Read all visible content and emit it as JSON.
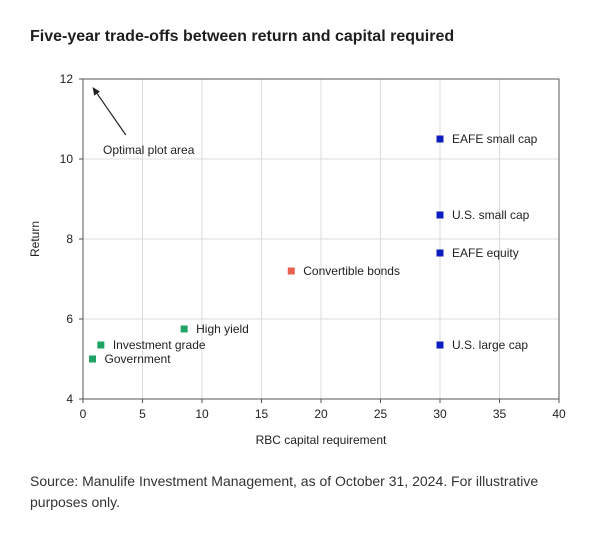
{
  "title": "Five-year trade-offs between return and capital required",
  "source": "Source: Manulife Investment Management, as of October 31, 2024. For illustrative purposes only.",
  "chart_data": {
    "type": "scatter",
    "xlabel": "RBC capital requirement",
    "ylabel": "Return",
    "xlim": [
      0,
      40
    ],
    "ylim": [
      4,
      12
    ],
    "xticks": [
      0,
      5,
      10,
      15,
      20,
      25,
      30,
      35,
      40
    ],
    "yticks": [
      4,
      6,
      8,
      10,
      12
    ],
    "grid": true,
    "annotation": {
      "text": "Optimal plot area",
      "arrow_from": [
        3.6,
        10.6
      ],
      "arrow_to": [
        0.8,
        11.8
      ]
    },
    "points": [
      {
        "label": "Government",
        "x": 0.8,
        "y": 5.0,
        "color": "#1fa463"
      },
      {
        "label": "Investment grade",
        "x": 1.5,
        "y": 5.35,
        "color": "#1fa463"
      },
      {
        "label": "High yield",
        "x": 8.5,
        "y": 5.75,
        "color": "#1fa463"
      },
      {
        "label": "Convertible bonds",
        "x": 17.5,
        "y": 7.2,
        "color": "#e8614f"
      },
      {
        "label": "U.S. large cap",
        "x": 30,
        "y": 5.35,
        "color": "#0b1dbf"
      },
      {
        "label": "EAFE equity",
        "x": 30,
        "y": 7.65,
        "color": "#0b1dbf"
      },
      {
        "label": "U.S. small cap",
        "x": 30,
        "y": 8.6,
        "color": "#0b1dbf"
      },
      {
        "label": "EAFE small cap",
        "x": 30,
        "y": 10.5,
        "color": "#0b1dbf"
      }
    ]
  }
}
